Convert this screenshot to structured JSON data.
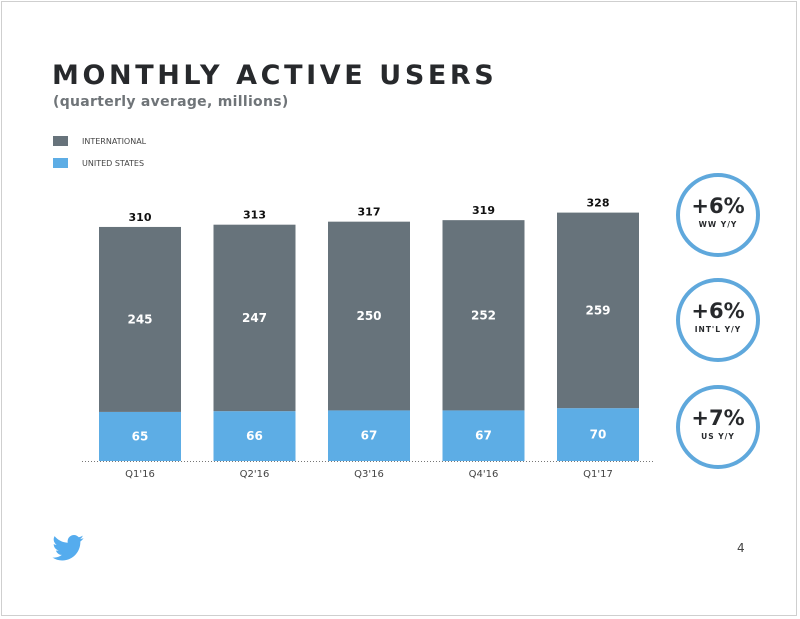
{
  "colors": {
    "international": "#67737b",
    "united_states": "#5dade5",
    "circle": "#5fa8dc",
    "twitter": "#55acee"
  },
  "legend": [
    {
      "label": "INTERNATIONAL",
      "color": "#67737b"
    },
    {
      "label": "UNITED STATES",
      "color": "#5dade5"
    }
  ],
  "callouts": [
    {
      "value": "+6%",
      "label": "WW Y/Y"
    },
    {
      "value": "+6%",
      "label": "INT'L Y/Y"
    },
    {
      "value": "+7%",
      "label": "US Y/Y"
    }
  ],
  "footer": {
    "page_number": "4",
    "logo_icon": "twitter-bird-icon"
  },
  "chart_data": {
    "type": "bar",
    "stacked": true,
    "title": "MONTHLY ACTIVE USERS",
    "subtitle": "(quarterly average, millions)",
    "categories": [
      "Q1'16",
      "Q2'16",
      "Q3'16",
      "Q4'16",
      "Q1'17"
    ],
    "series": [
      {
        "name": "UNITED STATES",
        "values": [
          65,
          66,
          67,
          67,
          70
        ]
      },
      {
        "name": "INTERNATIONAL",
        "values": [
          245,
          247,
          250,
          252,
          259
        ]
      }
    ],
    "totals": [
      310,
      313,
      317,
      319,
      328
    ],
    "ylim": [
      0,
      330
    ],
    "grid": false,
    "legend_position": "top-left"
  }
}
